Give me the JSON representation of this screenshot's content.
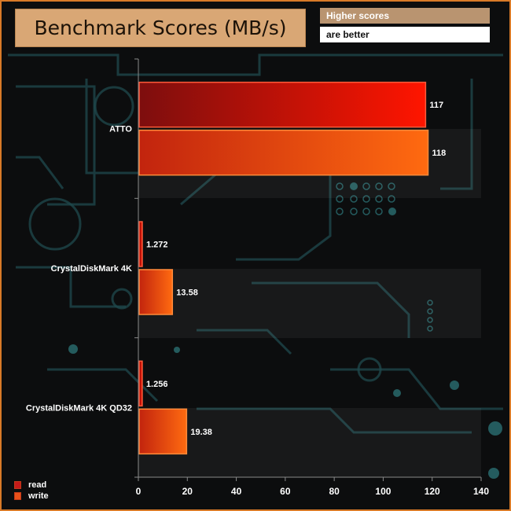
{
  "title": "Benchmark Scores (MB/s)",
  "note": {
    "line1": "Higher scores",
    "line2": "are better"
  },
  "colors": {
    "read_dark": "#7d0e0e",
    "read_light": "#ff1500",
    "write_dark": "#c2240e",
    "write_light": "#ff6a10",
    "frame": "#d87a28",
    "title_bg": "#d9a775"
  },
  "chart_data": {
    "type": "bar",
    "orientation": "horizontal",
    "categories": [
      "ATTO",
      "CrystalDiskMark 4K",
      "CrystalDiskMark 4K QD32"
    ],
    "series": [
      {
        "name": "read",
        "values": [
          117,
          1.272,
          1.256
        ],
        "labels": [
          "117",
          "1.272",
          "1.256"
        ]
      },
      {
        "name": "write",
        "values": [
          118,
          13.58,
          19.38
        ],
        "labels": [
          "118",
          "13.58",
          "19.38"
        ]
      }
    ],
    "xlim": [
      0,
      140
    ],
    "xticks": [
      0,
      20,
      40,
      60,
      80,
      100,
      120,
      140
    ],
    "legend": "bottom-left",
    "grid": false
  }
}
